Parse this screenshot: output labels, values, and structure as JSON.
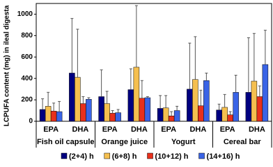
{
  "chart_data": {
    "type": "bar",
    "y_label": "LCPUFA content (mg) in ileal digesta",
    "groups": [
      {
        "name": "Fish oil capsule",
        "categories": [
          "EPA",
          "DHA"
        ]
      },
      {
        "name": "Orange juice",
        "categories": [
          "EPA",
          "DHA"
        ]
      },
      {
        "name": "Yogurt",
        "categories": [
          "EPA",
          "DHA"
        ]
      },
      {
        "name": "Cereal bar",
        "categories": [
          "EPA",
          "DHA"
        ]
      }
    ],
    "series": [
      {
        "name": "(2+4) h",
        "color": "#000080",
        "values": [
          110,
          450,
          230,
          295,
          120,
          300,
          105,
          270
        ],
        "errors": [
          100,
          510,
          250,
          195,
          120,
          430,
          55,
          510
        ]
      },
      {
        "name": "(6+8) h",
        "color": "#f5bf4f",
        "values": [
          140,
          410,
          165,
          505,
          125,
          390,
          130,
          375
        ],
        "errors": [
          130,
          450,
          115,
          575,
          115,
          400,
          120,
          445
        ]
      },
      {
        "name": "(10+12) h",
        "color": "#e8301c",
        "values": [
          95,
          165,
          75,
          215,
          50,
          145,
          60,
          230
        ],
        "errors": [
          75,
          65,
          25,
          165,
          40,
          145,
          30,
          100
        ]
      },
      {
        "name": "(14+16) h",
        "color": "#3a64e6",
        "values": [
          90,
          205,
          80,
          220,
          100,
          380,
          270,
          530
        ],
        "errors": [
          95,
          15,
          30,
          10,
          40,
          70,
          160,
          320
        ]
      }
    ],
    "ylim": [
      0,
      1100
    ],
    "yticks": [
      0,
      200,
      400,
      600,
      800,
      1000
    ]
  }
}
